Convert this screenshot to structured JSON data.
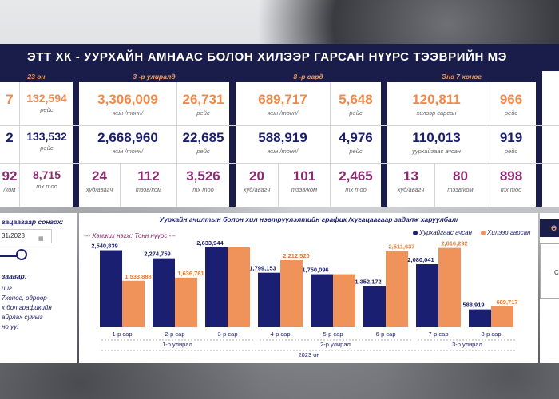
{
  "title": "ЭТТ ХК - УУРХАЙН АМНААС БОЛОН ХИЛЭЭР ГАРСАН НҮҮРС ТЭЭВРИЙН МЭ",
  "sections": {
    "year": {
      "head": "23 он",
      "row1": {
        "v1": "7",
        "v2": "132,594",
        "l2": "рейс"
      },
      "row2": {
        "v1": "2",
        "v2": "133,532",
        "l2": "рейс"
      },
      "row3": {
        "v1": "92",
        "l1": "/ком",
        "v2": "8,715",
        "l2": "тх тоо"
      }
    },
    "quarter": {
      "head": "3 -р улиралд",
      "row1": {
        "v1": "3,306,009",
        "l1": "жин /тонн/",
        "v2": "26,731",
        "l2": "рейс"
      },
      "row2": {
        "v1": "2,668,960",
        "l1": "жин /тонн/",
        "v2": "22,685",
        "l2": "рейс"
      },
      "row3": {
        "a": "24",
        "al": "худ/авагч",
        "b": "112",
        "bl": "тээв/ком",
        "c": "3,526",
        "cl": "тх тоо"
      }
    },
    "month": {
      "head": "8 -р сард",
      "row1": {
        "v1": "689,717",
        "l1": "жин /тонн/",
        "v2": "5,648",
        "l2": "рейс"
      },
      "row2": {
        "v1": "588,919",
        "l1": "жин /тонн/",
        "v2": "4,976",
        "l2": "рейс"
      },
      "row3": {
        "a": "20",
        "al": "худ/авагч",
        "b": "101",
        "bl": "тээв/ком",
        "c": "2,465",
        "cl": "тх тоо"
      }
    },
    "week": {
      "head": "Энэ 7 хоног",
      "row1": {
        "v1": "120,811",
        "l1": "хилээр гарсан",
        "v2": "966",
        "l2": "рейс"
      },
      "row2": {
        "v1": "110,013",
        "l1": "уурхайгаас ачсан",
        "v2": "919",
        "l2": "рейс"
      },
      "row3": {
        "a": "13",
        "al": "худ/авагч",
        "b": "80",
        "bl": "тээв/ком",
        "c": "898",
        "cl": "тх тоо"
      }
    }
  },
  "left_panel": {
    "date_label": "гацаагаар сонгох:",
    "date_value": "31/2023",
    "note_title": "заавар:",
    "note_lines": [
      "ийг",
      "7хоног, өдрөөр",
      "х бол графикийн",
      "айрлах сумыг",
      "но уу!"
    ]
  },
  "chart": {
    "title": "Уурхайн ачилтын болон хил нэвтрүүлэлтийн график /хугацаагаар задалж харуулбал/",
    "unit_label": "--- Хэмжих нэгж: Тонн нүүрс ---",
    "legend": [
      "Уурхайгаас ачсан",
      "Хилээр гарсан"
    ],
    "colors": {
      "mine": "#1a1f72",
      "border": "#f0935a"
    },
    "chart_data": {
      "type": "bar",
      "categories": [
        "1-р сар",
        "2-р сар",
        "3-р сар",
        "4-р сар",
        "5-р сар",
        "6-р сар",
        "7-р сар",
        "8-р сар"
      ],
      "series": [
        {
          "name": "Уурхайгаас ачсан",
          "values": [
            2540839,
            2274759,
            2633944,
            1799153,
            1750096,
            1352172,
            2080041,
            588919
          ],
          "labels": [
            "2,540,839",
            "2,274,759",
            "2,633,944",
            "1,799,153",
            "1,750,096",
            "1,352,172",
            "2,080,041",
            "588,919"
          ]
        },
        {
          "name": "Хилээр гарсан",
          "values": [
            1533888,
            1636761,
            2633944,
            2212520,
            1750096,
            2511637,
            2616292,
            689717
          ],
          "labels": [
            "1,533,888",
            "1,636,761",
            "",
            "2,212,520",
            "",
            "2,511,637",
            "2,616,292",
            "689,717"
          ]
        }
      ],
      "quarters": [
        {
          "label": "1-р улирал",
          "from": 0,
          "to": 2
        },
        {
          "label": "2-р улирал",
          "from": 3,
          "to": 5
        },
        {
          "label": "3-р улирал",
          "from": 6,
          "to": 7
        }
      ],
      "year_label": "2023 он"
    }
  },
  "right_panel": {
    "head": "Ө",
    "letter": "С"
  }
}
